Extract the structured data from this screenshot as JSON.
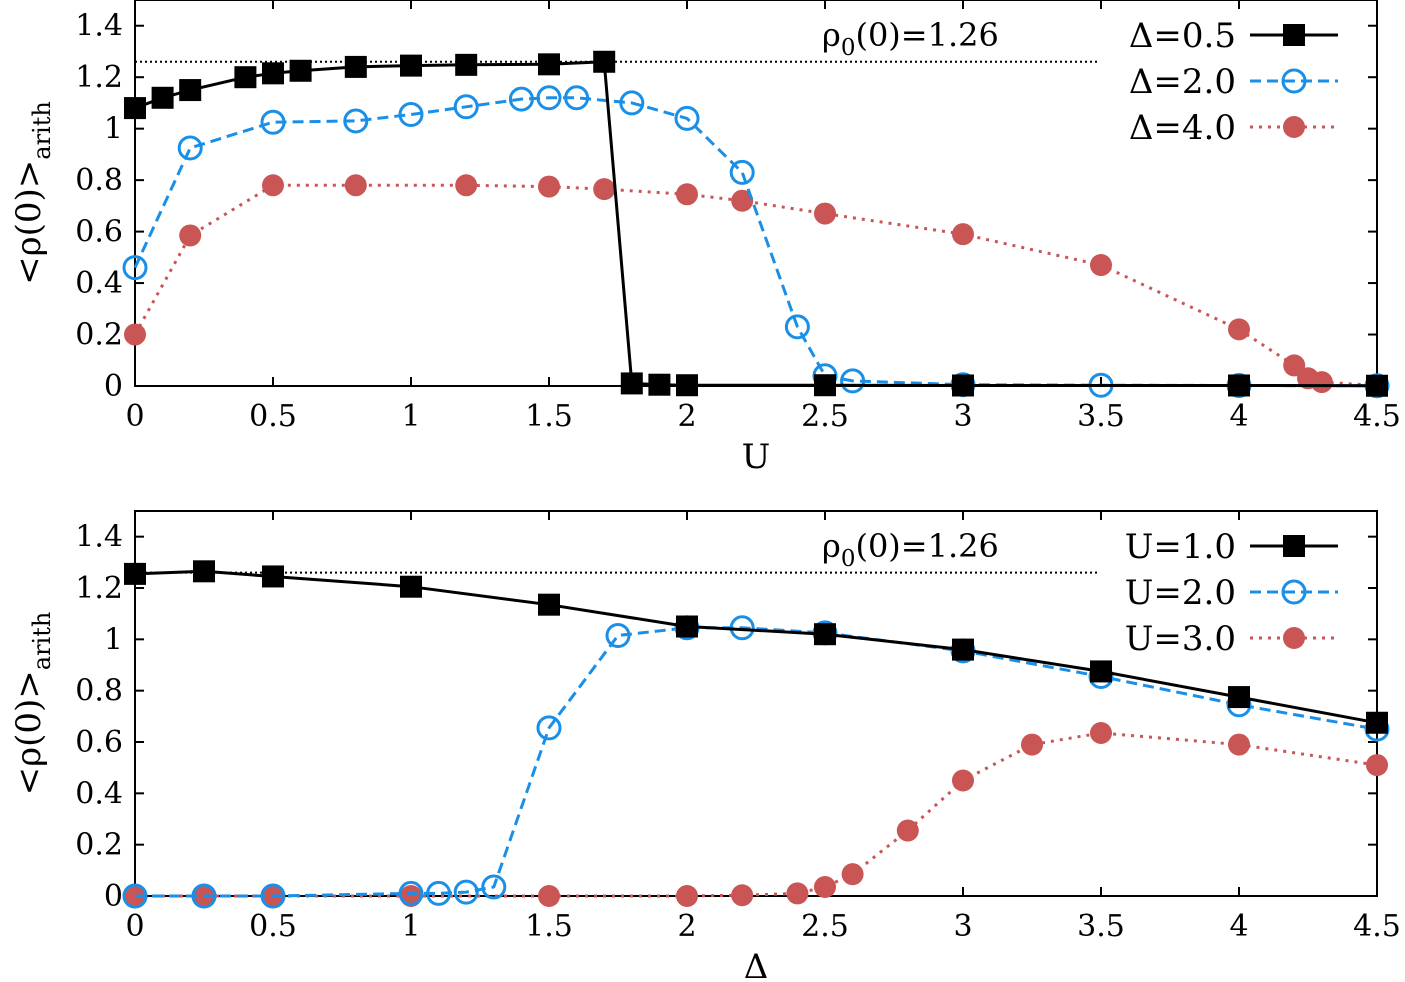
{
  "chart_data": [
    {
      "type": "line",
      "xlabel": "U",
      "ylabel": "<ρ(0)>",
      "ylabel_sub": "arith",
      "xlim": [
        0,
        4.5
      ],
      "ylim": [
        0,
        1.5
      ],
      "xticks": [
        "0",
        "0.5",
        "1",
        "1.5",
        "2",
        "2.5",
        "3",
        "3.5",
        "4",
        "4.5"
      ],
      "yticks": [
        "0",
        "0.2",
        "0.4",
        "0.6",
        "0.8",
        "1",
        "1.2",
        "1.4"
      ],
      "reference": {
        "y": 1.26,
        "label_main": "ρ",
        "label_sub": "0",
        "label_rest": "(0)=1.26"
      },
      "series": [
        {
          "name": "Δ=0.5",
          "color": "#000000",
          "marker": "filled-square",
          "dash": "solid",
          "x": [
            0,
            0.1,
            0.2,
            0.4,
            0.5,
            0.6,
            0.8,
            1.0,
            1.2,
            1.5,
            1.7,
            1.8,
            1.9,
            2.0,
            2.5,
            3.0,
            4.0,
            4.5
          ],
          "y": [
            1.08,
            1.12,
            1.15,
            1.2,
            1.215,
            1.225,
            1.24,
            1.245,
            1.248,
            1.25,
            1.26,
            0.01,
            0.005,
            0.003,
            0.003,
            0.002,
            0.002,
            0.001
          ]
        },
        {
          "name": "Δ=2.0",
          "color": "#1a8fe8",
          "marker": "open-circle",
          "dash": "dashed",
          "x": [
            0,
            0.2,
            0.5,
            0.8,
            1.0,
            1.2,
            1.4,
            1.5,
            1.6,
            1.8,
            2.0,
            2.2,
            2.4,
            2.5,
            2.6,
            3.0,
            3.5,
            4.0,
            4.5
          ],
          "y": [
            0.46,
            0.925,
            1.025,
            1.03,
            1.055,
            1.085,
            1.115,
            1.12,
            1.12,
            1.1,
            1.04,
            0.83,
            0.23,
            0.04,
            0.02,
            0.005,
            0.003,
            0.002,
            0.001
          ]
        },
        {
          "name": "Δ=4.0",
          "color": "#c95555",
          "marker": "filled-circle",
          "dash": "dotted",
          "x": [
            0,
            0.2,
            0.5,
            0.8,
            1.2,
            1.5,
            1.7,
            2.0,
            2.2,
            2.5,
            3.0,
            3.5,
            4.0,
            4.2,
            4.25,
            4.3,
            4.5
          ],
          "y": [
            0.2,
            0.585,
            0.78,
            0.78,
            0.78,
            0.775,
            0.765,
            0.745,
            0.72,
            0.67,
            0.59,
            0.47,
            0.22,
            0.08,
            0.03,
            0.015,
            0.002
          ]
        }
      ]
    },
    {
      "type": "line",
      "xlabel": "Δ",
      "ylabel": "<ρ(0)>",
      "ylabel_sub": "arith",
      "xlim": [
        0,
        4.5
      ],
      "ylim": [
        0,
        1.5
      ],
      "xticks": [
        "0",
        "0.5",
        "1",
        "1.5",
        "2",
        "2.5",
        "3",
        "3.5",
        "4",
        "4.5"
      ],
      "yticks": [
        "0",
        "0.2",
        "0.4",
        "0.6",
        "0.8",
        "1",
        "1.2",
        "1.4"
      ],
      "reference": {
        "y": 1.26,
        "label_main": "ρ",
        "label_sub": "0",
        "label_rest": "(0)=1.26"
      },
      "series": [
        {
          "name": "U=1.0",
          "color": "#000000",
          "marker": "filled-square",
          "dash": "solid",
          "x": [
            0,
            0.25,
            0.5,
            1.0,
            1.5,
            2.0,
            2.5,
            3.0,
            3.5,
            4.0,
            4.5
          ],
          "y": [
            1.255,
            1.265,
            1.245,
            1.205,
            1.135,
            1.05,
            1.02,
            0.96,
            0.875,
            0.775,
            0.675
          ]
        },
        {
          "name": "U=2.0",
          "color": "#1a8fe8",
          "marker": "open-circle",
          "dash": "dashed",
          "x": [
            0,
            0.25,
            0.5,
            1.0,
            1.1,
            1.2,
            1.3,
            1.5,
            1.75,
            2.0,
            2.2,
            2.5,
            3.0,
            3.5,
            4.0,
            4.5
          ],
          "y": [
            0.0,
            0.0,
            0.0,
            0.01,
            0.01,
            0.015,
            0.035,
            0.655,
            1.015,
            1.045,
            1.045,
            1.025,
            0.955,
            0.855,
            0.745,
            0.65
          ]
        },
        {
          "name": "U=3.0",
          "color": "#c95555",
          "marker": "filled-circle",
          "dash": "dotted",
          "x": [
            0,
            0.25,
            0.5,
            1.0,
            1.5,
            2.0,
            2.2,
            2.4,
            2.5,
            2.6,
            2.8,
            3.0,
            3.25,
            3.5,
            4.0,
            4.5
          ],
          "y": [
            0.0,
            0.0,
            0.0,
            0.0,
            0.0,
            0.0,
            0.003,
            0.01,
            0.035,
            0.085,
            0.255,
            0.45,
            0.59,
            0.635,
            0.59,
            0.51
          ]
        }
      ]
    }
  ]
}
